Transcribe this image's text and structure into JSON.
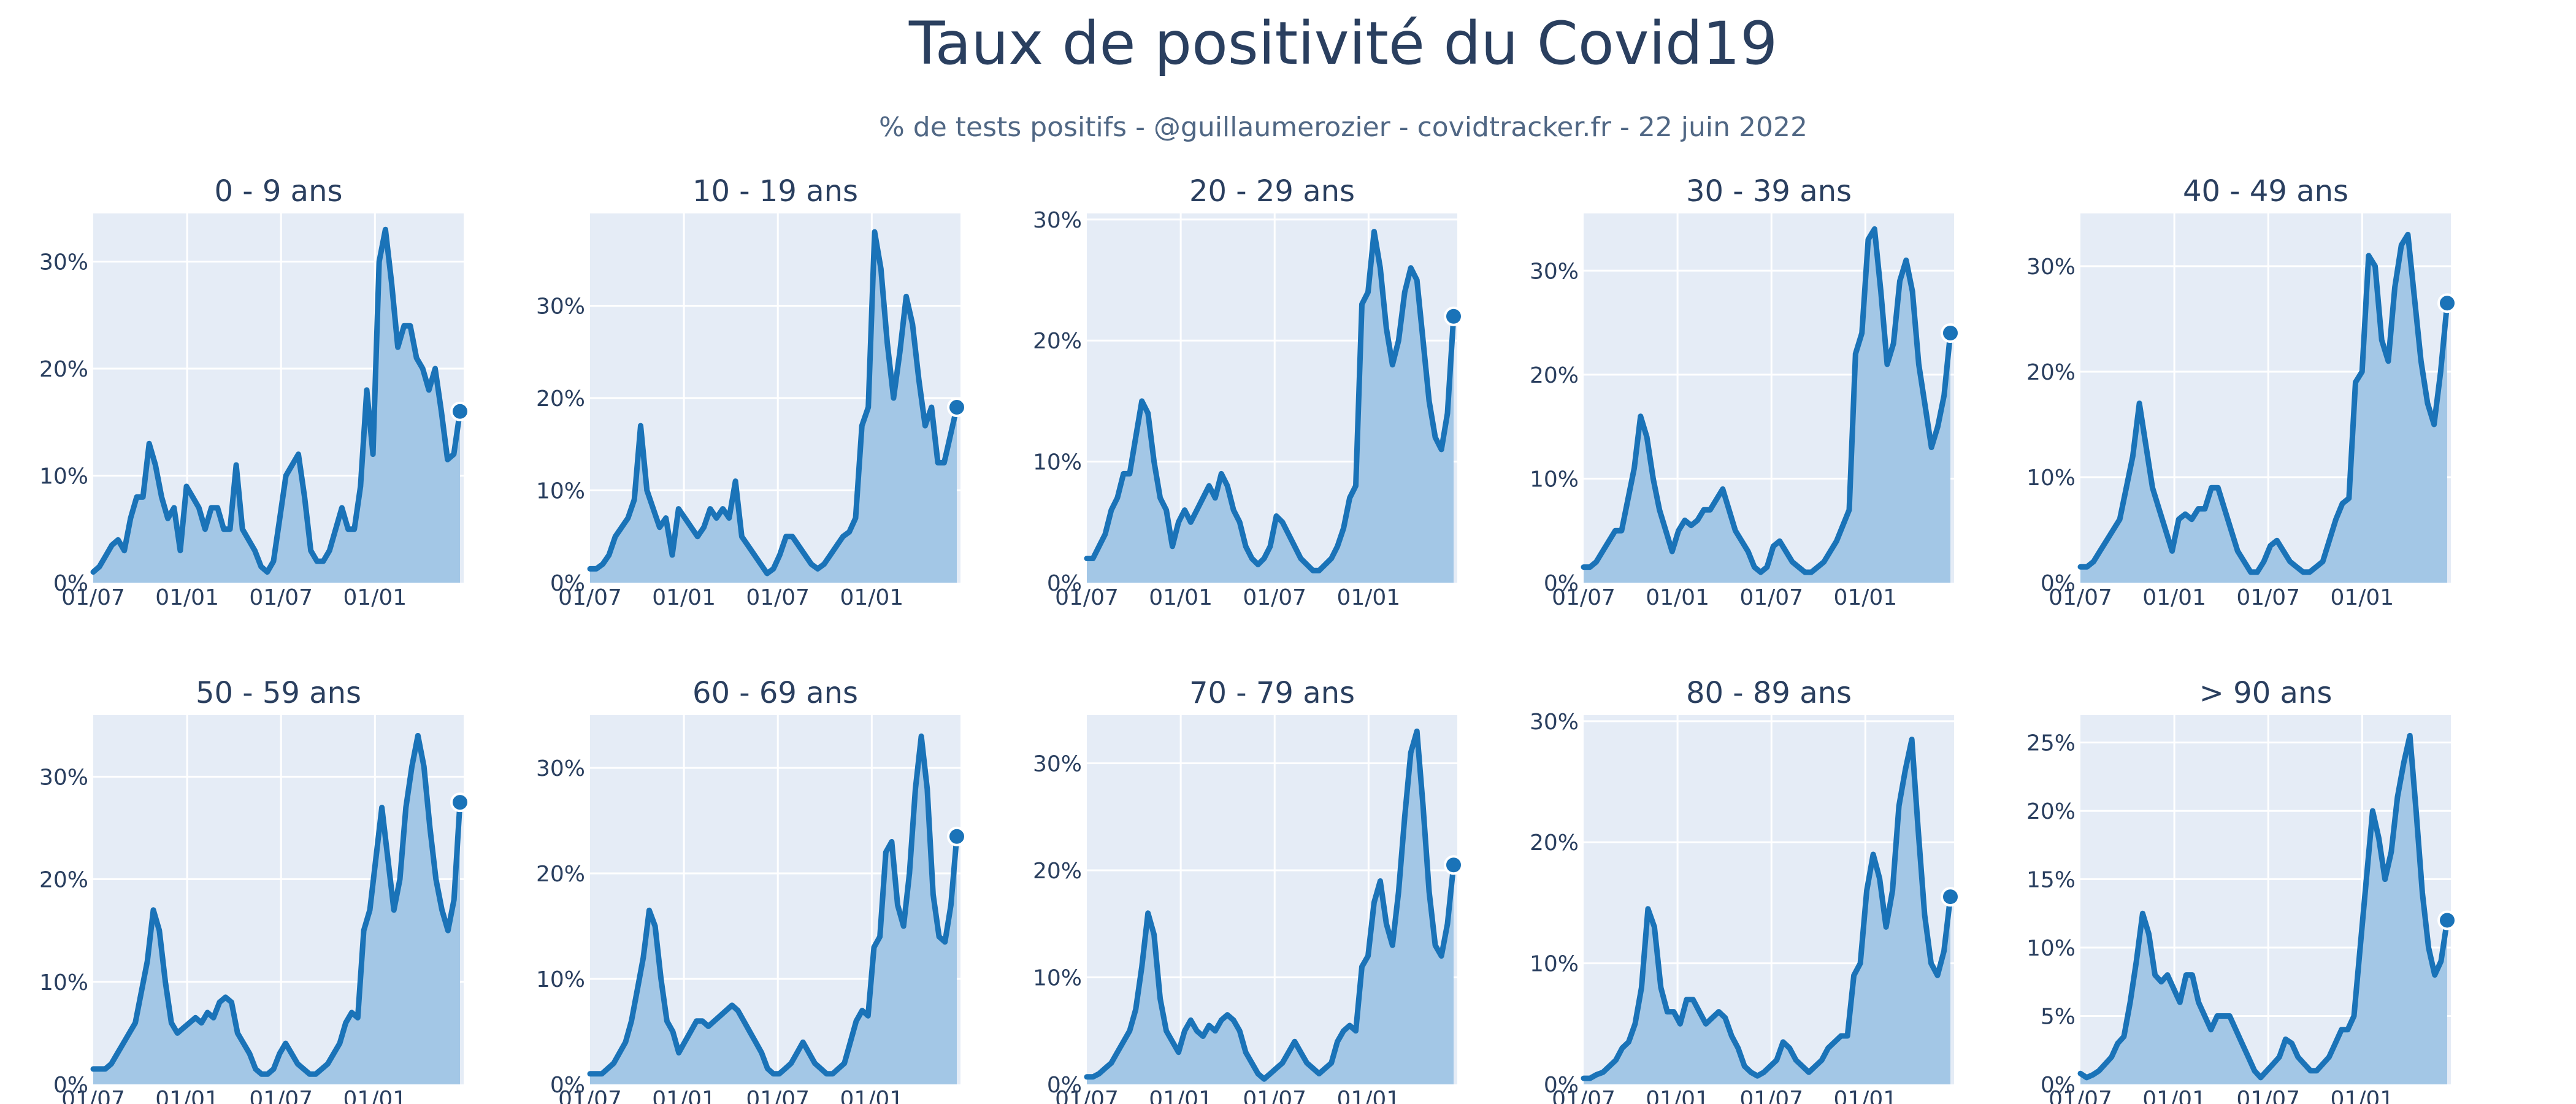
{
  "page": {
    "title": "Taux de positivité du Covid19",
    "subtitle": "% de tests positifs - @guillaumerozier - covidtracker.fr - 22 juin 2022"
  },
  "colors": {
    "line": "#1a73b8",
    "fill": "#a3c7e6",
    "plot_bg": "#e5ecf6",
    "text": "#2a3f5f"
  },
  "x_ticks": [
    "01/07",
    "01/01",
    "01/07",
    "01/01"
  ],
  "chart_data": [
    {
      "type": "area",
      "title": "0 - 9 ans",
      "ylabel": "",
      "xlabel": "",
      "ylim": [
        0,
        34.5
      ],
      "yticks": [
        0,
        10,
        20,
        30
      ],
      "grid": true,
      "series": [
        {
          "values": [
            1,
            1.5,
            2.5,
            3.5,
            4,
            3,
            6,
            8,
            8,
            13,
            11,
            8,
            6,
            7,
            3,
            9,
            8,
            7,
            5,
            7,
            7,
            5,
            5,
            11,
            5,
            4,
            3,
            1.5,
            1,
            2,
            6,
            10,
            11,
            12,
            8,
            3,
            2,
            2,
            3,
            5,
            7,
            5,
            5,
            9,
            18,
            12,
            30,
            33,
            28,
            22,
            24,
            24,
            21,
            20,
            18,
            20,
            16,
            11.5,
            12,
            16
          ]
        }
      ]
    },
    {
      "type": "area",
      "title": "10 - 19 ans",
      "ylabel": "",
      "xlabel": "",
      "ylim": [
        0,
        40
      ],
      "yticks": [
        0,
        10,
        20,
        30
      ],
      "grid": true,
      "series": [
        {
          "values": [
            1.5,
            1.5,
            2,
            3,
            5,
            6,
            7,
            9,
            17,
            10,
            8,
            6,
            7,
            3,
            8,
            7,
            6,
            5,
            6,
            8,
            7,
            8,
            7,
            11,
            5,
            4,
            3,
            2,
            1,
            1.5,
            3,
            5,
            5,
            4,
            3,
            2,
            1.5,
            2,
            3,
            4,
            5,
            5.5,
            7,
            17,
            19,
            38,
            34,
            26,
            20,
            25,
            31,
            28,
            22,
            17,
            19,
            13,
            13,
            16,
            19
          ]
        }
      ]
    },
    {
      "type": "area",
      "title": "20 - 29 ans",
      "ylabel": "",
      "xlabel": "",
      "ylim": [
        0,
        30.5
      ],
      "yticks": [
        0,
        10,
        20,
        30
      ],
      "grid": true,
      "series": [
        {
          "values": [
            2,
            2,
            3,
            4,
            6,
            7,
            9,
            9,
            12,
            15,
            14,
            10,
            7,
            6,
            3,
            5,
            6,
            5,
            6,
            7,
            8,
            7,
            9,
            8,
            6,
            5,
            3,
            2,
            1.5,
            2,
            3,
            5.5,
            5,
            4,
            3,
            2,
            1.5,
            1,
            1,
            1.5,
            2,
            3,
            4.5,
            7,
            8,
            23,
            24,
            29,
            26,
            21,
            18,
            20,
            24,
            26,
            25,
            20,
            15,
            12,
            11,
            14,
            22
          ]
        }
      ]
    },
    {
      "type": "area",
      "title": "30 - 39 ans",
      "ylabel": "",
      "xlabel": "",
      "ylim": [
        0,
        35.5
      ],
      "yticks": [
        0,
        10,
        20,
        30
      ],
      "grid": true,
      "series": [
        {
          "values": [
            1.5,
            1.5,
            2,
            3,
            4,
            5,
            5,
            8,
            11,
            16,
            14,
            10,
            7,
            5,
            3,
            5,
            6,
            5.5,
            6,
            7,
            7,
            8,
            9,
            7,
            5,
            4,
            3,
            1.5,
            1,
            1.5,
            3.5,
            4,
            3,
            2,
            1.5,
            1,
            1,
            1.5,
            2,
            3,
            4,
            5.5,
            7,
            22,
            24,
            33,
            34,
            28,
            21,
            23,
            29,
            31,
            28,
            21,
            17,
            13,
            15,
            18,
            24
          ]
        }
      ]
    },
    {
      "type": "area",
      "title": "40 - 49 ans",
      "ylabel": "",
      "xlabel": "",
      "ylim": [
        0,
        35
      ],
      "yticks": [
        0,
        10,
        20,
        30
      ],
      "grid": true,
      "series": [
        {
          "values": [
            1.5,
            1.5,
            2,
            3,
            4,
            5,
            6,
            9,
            12,
            17,
            13,
            9,
            7,
            5,
            3,
            6,
            6.5,
            6,
            7,
            7,
            9,
            9,
            7,
            5,
            3,
            2,
            1,
            1,
            2,
            3.5,
            4,
            3,
            2,
            1.5,
            1,
            1,
            1.5,
            2,
            4,
            6,
            7.5,
            8,
            19,
            20,
            31,
            30,
            23,
            21,
            28,
            32,
            33,
            27,
            21,
            17,
            15,
            20,
            26.5
          ]
        }
      ]
    },
    {
      "type": "area",
      "title": "50 - 59 ans",
      "ylabel": "",
      "xlabel": "",
      "ylim": [
        0,
        36
      ],
      "yticks": [
        0,
        10,
        20,
        30
      ],
      "grid": true,
      "series": [
        {
          "values": [
            1.5,
            1.5,
            1.5,
            2,
            3,
            4,
            5,
            6,
            9,
            12,
            17,
            15,
            10,
            6,
            5,
            5.5,
            6,
            6.5,
            6,
            7,
            6.5,
            8,
            8.5,
            8,
            5,
            4,
            3,
            1.5,
            1,
            1,
            1.5,
            3,
            4,
            3,
            2,
            1.5,
            1,
            1,
            1.5,
            2,
            3,
            4,
            6,
            7,
            6.5,
            15,
            17,
            22,
            27,
            22,
            17,
            20,
            27,
            31,
            34,
            31,
            25,
            20,
            17,
            15,
            18,
            27.5
          ]
        }
      ]
    },
    {
      "type": "area",
      "title": "60 - 69 ans",
      "ylabel": "",
      "xlabel": "",
      "ylim": [
        0,
        35
      ],
      "yticks": [
        0,
        10,
        20,
        30
      ],
      "grid": true,
      "series": [
        {
          "values": [
            1,
            1,
            1,
            1.5,
            2,
            3,
            4,
            6,
            9,
            12,
            16.5,
            15,
            10,
            6,
            5,
            3,
            4,
            5,
            6,
            6,
            5.5,
            6,
            6.5,
            7,
            7.5,
            7,
            6,
            5,
            4,
            3,
            1.5,
            1,
            1,
            1.5,
            2,
            3,
            4,
            3,
            2,
            1.5,
            1,
            1,
            1.5,
            2,
            4,
            6,
            7,
            6.5,
            13,
            14,
            22,
            23,
            17,
            15,
            20,
            28,
            33,
            28,
            18,
            14,
            13.5,
            17,
            23.5
          ]
        }
      ]
    },
    {
      "type": "area",
      "title": "70 - 79 ans",
      "ylabel": "",
      "xlabel": "",
      "ylim": [
        0,
        34.5
      ],
      "yticks": [
        0,
        10,
        20,
        30
      ],
      "grid": true,
      "series": [
        {
          "values": [
            0.7,
            0.7,
            1,
            1.5,
            2,
            3,
            4,
            5,
            7,
            11,
            16,
            14,
            8,
            5,
            4,
            3,
            5,
            6,
            5,
            4.5,
            5.5,
            5,
            6,
            6.5,
            6,
            5,
            3,
            2,
            1,
            0.5,
            1,
            1.5,
            2,
            3,
            4,
            3,
            2,
            1.5,
            1,
            1.5,
            2,
            4,
            5,
            5.5,
            5,
            11,
            12,
            17,
            19,
            15,
            13,
            18,
            25,
            31,
            33,
            26,
            18,
            13,
            12,
            15,
            20.5
          ]
        }
      ]
    },
    {
      "type": "area",
      "title": "80 - 89 ans",
      "ylabel": "",
      "xlabel": "",
      "ylim": [
        0,
        30.5
      ],
      "yticks": [
        0,
        10,
        20,
        30
      ],
      "grid": true,
      "series": [
        {
          "values": [
            0.5,
            0.5,
            0.8,
            1,
            1.5,
            2,
            3,
            3.5,
            5,
            8,
            14.5,
            13,
            8,
            6,
            6,
            5,
            7,
            7,
            6,
            5,
            5.5,
            6,
            5.5,
            4,
            3,
            1.5,
            1,
            0.7,
            1,
            1.5,
            2,
            3.5,
            3,
            2,
            1.5,
            1,
            1.5,
            2,
            3,
            3.5,
            4,
            4,
            9,
            10,
            16,
            19,
            17,
            13,
            16,
            23,
            26,
            28.5,
            21,
            14,
            10,
            9,
            11,
            15.5
          ]
        }
      ]
    },
    {
      "type": "area",
      "title": "> 90 ans",
      "ylabel": "",
      "xlabel": "",
      "ylim": [
        0,
        27
      ],
      "yticks": [
        0,
        5,
        10,
        15,
        20,
        25
      ],
      "grid": true,
      "series": [
        {
          "values": [
            0.8,
            0.5,
            0.7,
            1,
            1.5,
            2,
            3,
            3.5,
            6,
            9,
            12.5,
            11,
            8,
            7.5,
            8,
            7,
            6,
            8,
            8,
            6,
            5,
            4,
            5,
            5,
            5,
            4,
            3,
            2,
            1,
            0.5,
            1,
            1.5,
            2,
            3.3,
            3,
            2,
            1.5,
            1,
            1,
            1.5,
            2,
            3,
            4,
            4,
            5,
            10,
            15,
            20,
            18,
            15,
            17,
            21,
            23.5,
            25.5,
            20,
            14,
            10,
            8,
            9,
            12
          ]
        }
      ]
    }
  ]
}
